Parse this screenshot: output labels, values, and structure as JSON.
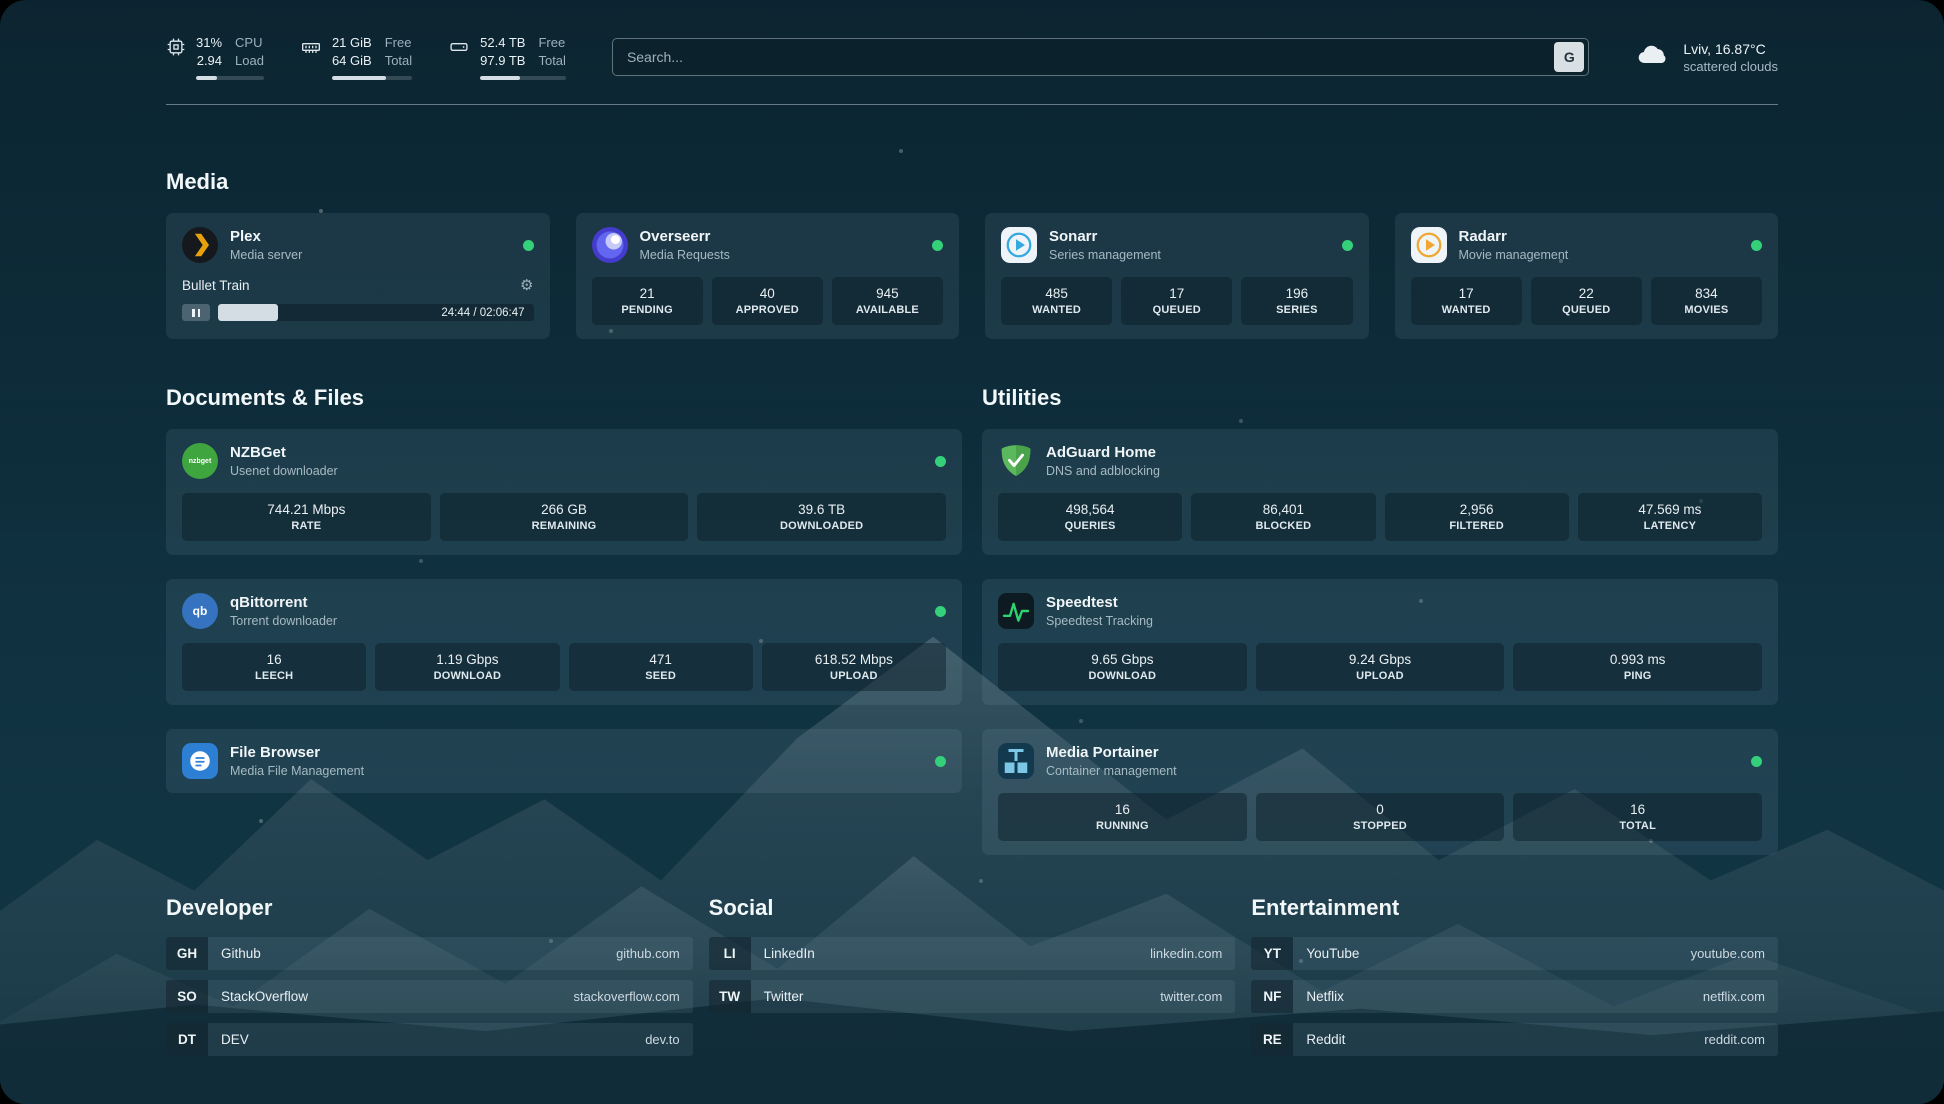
{
  "colors": {
    "status_online": "#35d07a",
    "plex_accent": "#e8a00d",
    "adguard_green": "#5cb85c",
    "speedtest_green": "#2dd36f"
  },
  "icons": {
    "gear": "⚙"
  },
  "header": {
    "cpu": {
      "line1": "31%",
      "line2": "2.94",
      "label1": "CPU",
      "label2": "Load",
      "bar_percent": 31
    },
    "ram": {
      "line1": "21 GiB",
      "line2": "64 GiB",
      "label1": "Free",
      "label2": "Total",
      "bar_percent": 67
    },
    "disk": {
      "line1": "52.4 TB",
      "line2": "97.9 TB",
      "label1": "Free",
      "label2": "Total",
      "bar_percent": 46
    },
    "search": {
      "placeholder": "Search...",
      "button_label": "G"
    },
    "weather": {
      "location": "Lviv, 16.87°C",
      "condition": "scattered clouds"
    }
  },
  "media": {
    "title": "Media",
    "plex": {
      "title": "Plex",
      "subtitle": "Media server",
      "now_playing": "Bullet Train",
      "time": "24:44 / 02:06:47",
      "progress_percent": 19
    },
    "overseerr": {
      "title": "Overseerr",
      "subtitle": "Media Requests",
      "stats": [
        {
          "value": "21",
          "label": "PENDING"
        },
        {
          "value": "40",
          "label": "APPROVED"
        },
        {
          "value": "945",
          "label": "AVAILABLE"
        }
      ]
    },
    "sonarr": {
      "title": "Sonarr",
      "subtitle": "Series management",
      "stats": [
        {
          "value": "485",
          "label": "WANTED"
        },
        {
          "value": "17",
          "label": "QUEUED"
        },
        {
          "value": "196",
          "label": "SERIES"
        }
      ]
    },
    "radarr": {
      "title": "Radarr",
      "subtitle": "Movie management",
      "stats": [
        {
          "value": "17",
          "label": "WANTED"
        },
        {
          "value": "22",
          "label": "QUEUED"
        },
        {
          "value": "834",
          "label": "MOVIES"
        }
      ]
    }
  },
  "documents": {
    "title": "Documents & Files",
    "nzbget": {
      "title": "NZBGet",
      "subtitle": "Usenet downloader",
      "icon_text": "nzbget",
      "stats": [
        {
          "value": "744.21 Mbps",
          "label": "RATE"
        },
        {
          "value": "266 GB",
          "label": "REMAINING"
        },
        {
          "value": "39.6 TB",
          "label": "DOWNLOADED"
        }
      ]
    },
    "qbittorrent": {
      "title": "qBittorrent",
      "subtitle": "Torrent downloader",
      "icon_text": "qb",
      "stats": [
        {
          "value": "16",
          "label": "LEECH"
        },
        {
          "value": "1.19 Gbps",
          "label": "DOWNLOAD"
        },
        {
          "value": "471",
          "label": "SEED"
        },
        {
          "value": "618.52 Mbps",
          "label": "UPLOAD"
        }
      ]
    },
    "filebrowser": {
      "title": "File Browser",
      "subtitle": "Media File Management"
    }
  },
  "utilities": {
    "title": "Utilities",
    "adguard": {
      "title": "AdGuard Home",
      "subtitle": "DNS and adblocking",
      "stats": [
        {
          "value": "498,564",
          "label": "QUERIES"
        },
        {
          "value": "86,401",
          "label": "BLOCKED"
        },
        {
          "value": "2,956",
          "label": "FILTERED"
        },
        {
          "value": "47.569 ms",
          "label": "LATENCY"
        }
      ]
    },
    "speedtest": {
      "title": "Speedtest",
      "subtitle": "Speedtest Tracking",
      "stats": [
        {
          "value": "9.65 Gbps",
          "label": "DOWNLOAD"
        },
        {
          "value": "9.24 Gbps",
          "label": "UPLOAD"
        },
        {
          "value": "0.993 ms",
          "label": "PING"
        }
      ]
    },
    "portainer": {
      "title": "Media Portainer",
      "subtitle": "Container management",
      "stats": [
        {
          "value": "16",
          "label": "RUNNING"
        },
        {
          "value": "0",
          "label": "STOPPED"
        },
        {
          "value": "16",
          "label": "TOTAL"
        }
      ]
    }
  },
  "bookmarks": {
    "developer": {
      "title": "Developer",
      "items": [
        {
          "abbr": "GH",
          "name": "Github",
          "url": "github.com"
        },
        {
          "abbr": "SO",
          "name": "StackOverflow",
          "url": "stackoverflow.com"
        },
        {
          "abbr": "DT",
          "name": "DEV",
          "url": "dev.to"
        }
      ]
    },
    "social": {
      "title": "Social",
      "items": [
        {
          "abbr": "LI",
          "name": "LinkedIn",
          "url": "linkedin.com"
        },
        {
          "abbr": "TW",
          "name": "Twitter",
          "url": "twitter.com"
        }
      ]
    },
    "entertainment": {
      "title": "Entertainment",
      "items": [
        {
          "abbr": "YT",
          "name": "YouTube",
          "url": "youtube.com"
        },
        {
          "abbr": "NF",
          "name": "Netflix",
          "url": "netflix.com"
        },
        {
          "abbr": "RE",
          "name": "Reddit",
          "url": "reddit.com"
        }
      ]
    }
  }
}
